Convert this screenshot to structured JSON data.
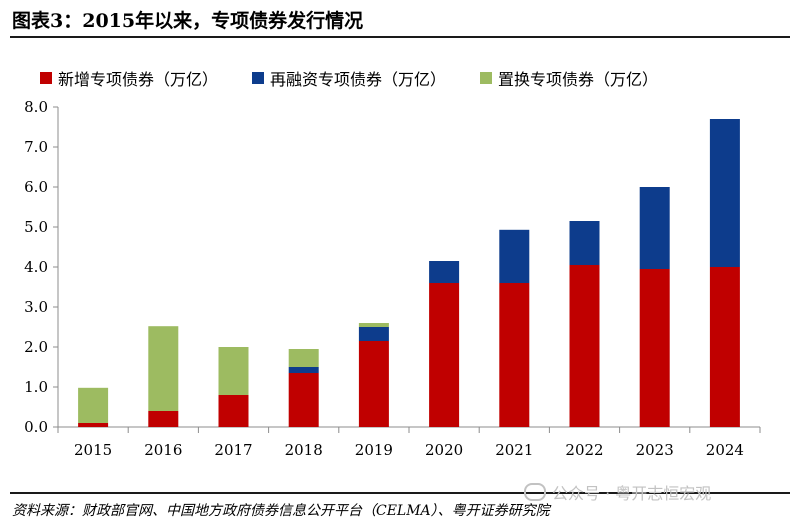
{
  "header": {
    "title": "图表3：2015年以来，专项债券发行情况"
  },
  "footer": {
    "source": "资料来源：财政部官网、中国地方政府债券信息公开平台（CELMA）、粤开证券研究院",
    "watermark": "公众号 · 粤开志恒宏观"
  },
  "chart_data": {
    "type": "bar",
    "stacked": true,
    "categories": [
      "2015",
      "2016",
      "2017",
      "2018",
      "2019",
      "2020",
      "2021",
      "2022",
      "2023",
      "2024"
    ],
    "series": [
      {
        "name": "新增专项债券（万亿）",
        "color": "#c00000",
        "values": [
          0.1,
          0.4,
          0.8,
          1.35,
          2.15,
          3.6,
          3.6,
          4.05,
          3.95,
          4.0
        ]
      },
      {
        "name": "再融资专项债券（万亿）",
        "color": "#0d3c8c",
        "values": [
          0.0,
          0.0,
          0.0,
          0.15,
          0.35,
          0.55,
          1.33,
          1.1,
          2.05,
          3.7
        ]
      },
      {
        "name": "置换专项债券（万亿）",
        "color": "#9dbb61",
        "values": [
          0.88,
          2.12,
          1.2,
          0.45,
          0.1,
          0.0,
          0.0,
          0.0,
          0.0,
          0.0
        ]
      }
    ],
    "yticks": [
      "0.0",
      "1.0",
      "2.0",
      "3.0",
      "4.0",
      "5.0",
      "6.0",
      "7.0",
      "8.0"
    ],
    "ylim": [
      0,
      8
    ],
    "legend_position": "top"
  }
}
